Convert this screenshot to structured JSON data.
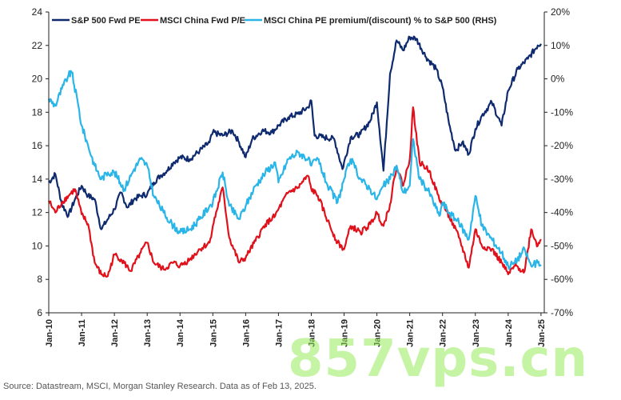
{
  "chart_data": {
    "type": "line",
    "title": "",
    "xlabel": "",
    "ylabel": "",
    "ylabel_right": "",
    "ylim": [
      6,
      24
    ],
    "y_ticks": [
      6,
      8,
      10,
      12,
      14,
      16,
      18,
      20,
      22,
      24
    ],
    "ylim_right": [
      -70,
      20
    ],
    "y_ticks_right": [
      "-70%",
      "-60%",
      "-50%",
      "-40%",
      "-30%",
      "-20%",
      "-10%",
      "0%",
      "10%",
      "20%"
    ],
    "xlim": [
      2010.0,
      2025.1
    ],
    "x_ticks": [
      "Jan-10",
      "Jan-11",
      "Jan-12",
      "Jan-13",
      "Jan-14",
      "Jan-15",
      "Jan-16",
      "Jan-17",
      "Jan-18",
      "Jan-19",
      "Jan-20",
      "Jan-21",
      "Jan-22",
      "Jan-23",
      "Jan-24",
      "Jan-25"
    ],
    "grid": false,
    "legend_position": "top",
    "series": [
      {
        "name": "S&P 500 Fwd PE",
        "axis": "left",
        "color": "#0f2a6e",
        "x": [
          2010.0,
          2010.2,
          2010.4,
          2010.6,
          2010.8,
          2011.0,
          2011.2,
          2011.4,
          2011.6,
          2011.8,
          2012.0,
          2012.2,
          2012.4,
          2012.6,
          2012.8,
          2013.0,
          2013.2,
          2013.4,
          2013.6,
          2013.8,
          2014.0,
          2014.3,
          2014.6,
          2014.9,
          2015.0,
          2015.3,
          2015.6,
          2015.8,
          2016.0,
          2016.2,
          2016.5,
          2016.8,
          2017.0,
          2017.3,
          2017.6,
          2017.9,
          2018.0,
          2018.1,
          2018.4,
          2018.7,
          2018.95,
          2019.2,
          2019.5,
          2019.8,
          2020.0,
          2020.2,
          2020.4,
          2020.6,
          2020.8,
          2021.0,
          2021.2,
          2021.5,
          2021.8,
          2022.0,
          2022.2,
          2022.4,
          2022.6,
          2022.8,
          2023.0,
          2023.2,
          2023.5,
          2023.8,
          2024.0,
          2024.3,
          2024.6,
          2024.9,
          2025.0
        ],
        "values": [
          13.8,
          14.3,
          12.5,
          11.8,
          12.8,
          13.6,
          13.0,
          12.8,
          11.0,
          11.6,
          12.2,
          13.2,
          12.3,
          12.8,
          13.0,
          13.1,
          13.8,
          14.2,
          14.5,
          15.0,
          15.3,
          15.2,
          15.7,
          16.2,
          16.8,
          16.6,
          16.9,
          16.2,
          15.3,
          16.4,
          16.9,
          16.8,
          17.2,
          17.7,
          17.9,
          18.3,
          18.7,
          16.6,
          16.5,
          16.4,
          14.6,
          16.5,
          16.7,
          17.5,
          18.6,
          14.5,
          20.3,
          22.3,
          21.7,
          22.5,
          22.4,
          21.3,
          20.6,
          19.5,
          17.3,
          15.7,
          16.2,
          15.5,
          17.0,
          17.8,
          18.6,
          17.2,
          19.3,
          20.6,
          21.2,
          22.0,
          22.1
        ]
      },
      {
        "name": "MSCI China Fwd P/E",
        "axis": "left",
        "color": "#e0111b",
        "x": [
          2010.0,
          2010.2,
          2010.4,
          2010.6,
          2010.8,
          2011.0,
          2011.2,
          2011.4,
          2011.6,
          2011.8,
          2012.0,
          2012.2,
          2012.5,
          2012.8,
          2013.0,
          2013.2,
          2013.5,
          2013.8,
          2014.0,
          2014.3,
          2014.6,
          2014.9,
          2015.0,
          2015.3,
          2015.5,
          2015.8,
          2016.0,
          2016.3,
          2016.6,
          2016.9,
          2017.0,
          2017.3,
          2017.6,
          2017.9,
          2018.0,
          2018.2,
          2018.5,
          2018.8,
          2019.0,
          2019.2,
          2019.5,
          2019.8,
          2020.0,
          2020.2,
          2020.4,
          2020.6,
          2020.8,
          2021.0,
          2021.1,
          2021.3,
          2021.6,
          2021.9,
          2022.0,
          2022.2,
          2022.5,
          2022.8,
          2023.0,
          2023.2,
          2023.5,
          2023.8,
          2024.0,
          2024.2,
          2024.5,
          2024.7,
          2024.9,
          2025.0
        ],
        "values": [
          12.7,
          12.0,
          12.6,
          13.0,
          13.4,
          11.9,
          11.3,
          9.0,
          8.3,
          8.2,
          9.5,
          9.2,
          8.5,
          9.6,
          10.2,
          9.0,
          8.6,
          9.0,
          8.8,
          9.2,
          9.8,
          10.2,
          11.2,
          13.5,
          10.5,
          9.0,
          9.3,
          10.3,
          11.3,
          11.8,
          12.2,
          13.2,
          13.5,
          14.2,
          13.4,
          13.0,
          11.5,
          10.2,
          9.8,
          11.2,
          10.8,
          11.3,
          12.0,
          11.2,
          12.5,
          14.8,
          13.6,
          15.2,
          18.3,
          15.0,
          14.5,
          12.8,
          12.5,
          11.8,
          10.5,
          8.7,
          11.0,
          10.0,
          9.8,
          9.0,
          8.3,
          8.8,
          8.5,
          11.0,
          10.0,
          10.4
        ]
      },
      {
        "name": "MSCI China PE premium/(discount) % to S&P 500 (RHS)",
        "axis": "right",
        "color": "#29b5e8",
        "x": [
          2010.0,
          2010.2,
          2010.4,
          2010.6,
          2010.7,
          2010.9,
          2011.0,
          2011.2,
          2011.4,
          2011.6,
          2011.8,
          2012.0,
          2012.3,
          2012.6,
          2012.8,
          2013.0,
          2013.2,
          2013.5,
          2013.8,
          2014.0,
          2014.3,
          2014.6,
          2014.9,
          2015.0,
          2015.3,
          2015.5,
          2015.8,
          2016.0,
          2016.3,
          2016.6,
          2016.9,
          2017.0,
          2017.3,
          2017.6,
          2017.9,
          2018.0,
          2018.2,
          2018.5,
          2018.8,
          2019.0,
          2019.2,
          2019.5,
          2019.8,
          2020.0,
          2020.2,
          2020.4,
          2020.6,
          2020.8,
          2021.0,
          2021.1,
          2021.3,
          2021.6,
          2021.9,
          2022.0,
          2022.2,
          2022.5,
          2022.8,
          2023.0,
          2023.2,
          2023.5,
          2023.8,
          2024.0,
          2024.2,
          2024.5,
          2024.7,
          2024.9,
          2025.0
        ],
        "values": [
          -6,
          -8,
          -3,
          1,
          2,
          -8,
          -14,
          -20,
          -26,
          -30,
          -28,
          -28,
          -33,
          -27,
          -24,
          -26,
          -35,
          -40,
          -44,
          -46,
          -45,
          -42,
          -38,
          -37,
          -28,
          -38,
          -42,
          -38,
          -32,
          -28,
          -25,
          -31,
          -24,
          -22,
          -24,
          -26,
          -24,
          -32,
          -37,
          -30,
          -24,
          -30,
          -33,
          -36,
          -32,
          -30,
          -26,
          -34,
          -32,
          -18,
          -30,
          -34,
          -41,
          -37,
          -40,
          -43,
          -48,
          -35,
          -44,
          -48,
          -52,
          -56,
          -55,
          -51,
          -56,
          -55,
          -56
        ]
      }
    ]
  },
  "source_note": "Source: Datastream, MSCI, Morgan Stanley Research. Data as of Feb 13, 2025.",
  "watermark": "857vps.cn"
}
